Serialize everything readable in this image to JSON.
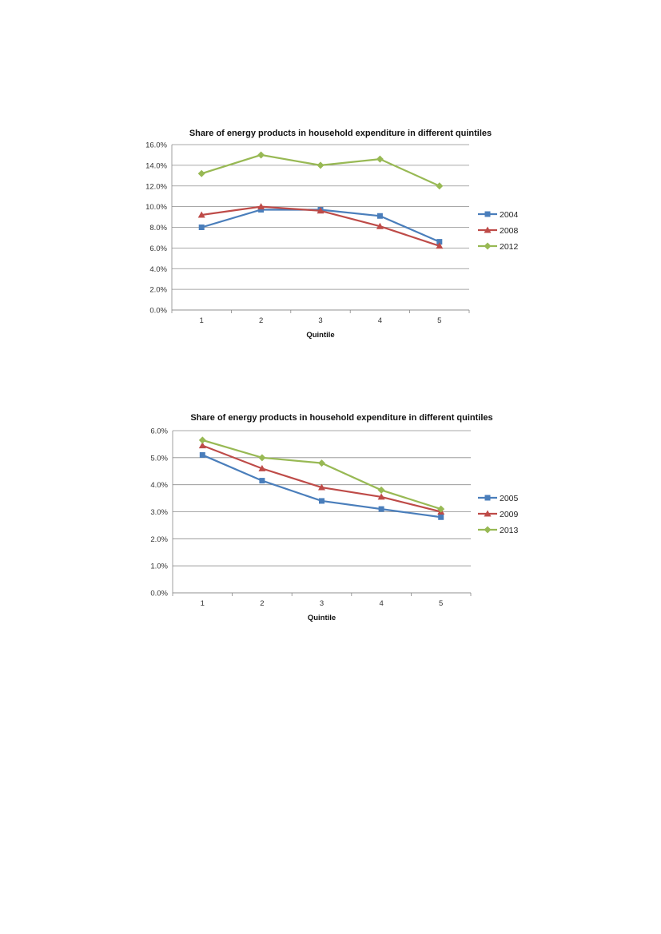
{
  "chart_data": [
    {
      "type": "line",
      "title": "Share of energy products in household expenditure in different quintiles",
      "xlabel": "Quintile",
      "ylabel": "",
      "categories": [
        "1",
        "2",
        "3",
        "4",
        "5"
      ],
      "ylim": [
        0,
        0.16
      ],
      "yticks": [
        "0.0%",
        "2.0%",
        "4.0%",
        "6.0%",
        "8.0%",
        "10.0%",
        "12.0%",
        "14.0%",
        "16.0%"
      ],
      "grid": true,
      "legend": "right",
      "series": [
        {
          "name": "2004",
          "color": "#4a7ebb",
          "marker": "square",
          "values": [
            0.08,
            0.097,
            0.097,
            0.091,
            0.066
          ]
        },
        {
          "name": "2008",
          "color": "#be4b48",
          "marker": "triangle",
          "values": [
            0.092,
            0.1,
            0.096,
            0.081,
            0.062
          ]
        },
        {
          "name": "2012",
          "color": "#98b954",
          "marker": "diamond",
          "values": [
            0.132,
            0.15,
            0.14,
            0.146,
            0.12
          ]
        }
      ]
    },
    {
      "type": "line",
      "title": "Share of energy products in household expenditure in different quintiles",
      "xlabel": "Quintile",
      "ylabel": "",
      "categories": [
        "1",
        "2",
        "3",
        "4",
        "5"
      ],
      "ylim": [
        0,
        0.06
      ],
      "yticks": [
        "0.0%",
        "1.0%",
        "2.0%",
        "3.0%",
        "4.0%",
        "5.0%",
        "6.0%"
      ],
      "grid": true,
      "legend": "right",
      "series": [
        {
          "name": "2005",
          "color": "#4a7ebb",
          "marker": "square",
          "values": [
            0.051,
            0.0415,
            0.034,
            0.031,
            0.028
          ]
        },
        {
          "name": "2009",
          "color": "#be4b48",
          "marker": "triangle",
          "values": [
            0.0545,
            0.046,
            0.039,
            0.0355,
            0.03
          ]
        },
        {
          "name": "2013",
          "color": "#98b954",
          "marker": "diamond",
          "values": [
            0.0565,
            0.05,
            0.048,
            0.038,
            0.031
          ]
        }
      ]
    }
  ]
}
